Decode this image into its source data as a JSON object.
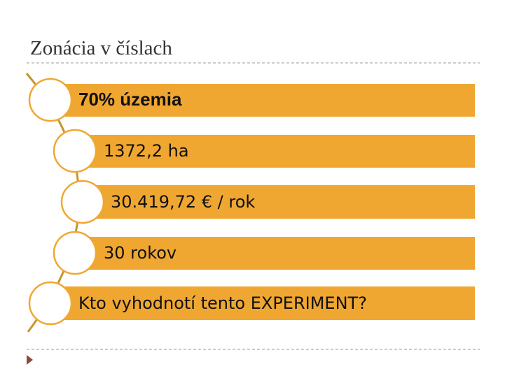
{
  "header": {
    "title": "Zonácia v číslach"
  },
  "items": [
    {
      "label": "70% územia"
    },
    {
      "label": "1372,2 ha"
    },
    {
      "label": "30.419,72 € / rok"
    },
    {
      "label": "30 rokov"
    },
    {
      "label": "Kto vyhodnotí tento EXPERIMENT?"
    }
  ]
}
